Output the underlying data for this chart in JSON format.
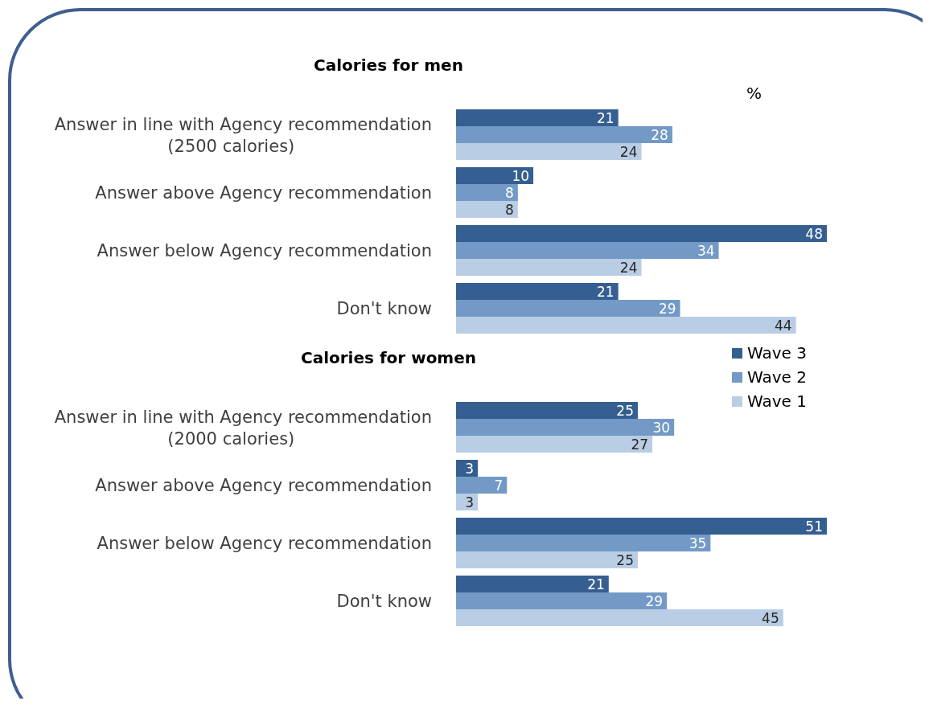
{
  "chart_data": [
    {
      "type": "bar",
      "orientation": "horizontal",
      "title": "Calories for men",
      "annotations": [
        "%"
      ],
      "categories": [
        "Answer in line with Agency recommendation (2500 calories)",
        "Answer above Agency recommendation",
        "Answer below Agency recommendation",
        "Don't know"
      ],
      "series": [
        {
          "color": "#365f91",
          "values": [
            21,
            10,
            48,
            21
          ]
        },
        {
          "color": "#7399c6",
          "values": [
            28,
            8,
            34,
            29
          ]
        },
        {
          "color": "#b9cde5",
          "values": [
            24,
            8,
            24,
            44
          ]
        }
      ],
      "data_labels": true
    },
    {
      "type": "bar",
      "orientation": "horizontal",
      "title": "Calories for women",
      "categories": [
        "Answer in line with Agency recommendation (2000 calories)",
        "Answer above Agency recommendation",
        "Answer below Agency recommendation",
        "Don't know"
      ],
      "series": [
        {
          "name": "Wave 3",
          "color": "#365f91",
          "values": [
            25,
            3,
            51,
            21
          ]
        },
        {
          "name": "Wave 2",
          "color": "#7399c6",
          "values": [
            30,
            7,
            35,
            29
          ]
        },
        {
          "name": "Wave 1",
          "color": "#b9cde5",
          "values": [
            27,
            3,
            25,
            45
          ]
        }
      ],
      "data_labels": true,
      "legend": "top right"
    }
  ]
}
